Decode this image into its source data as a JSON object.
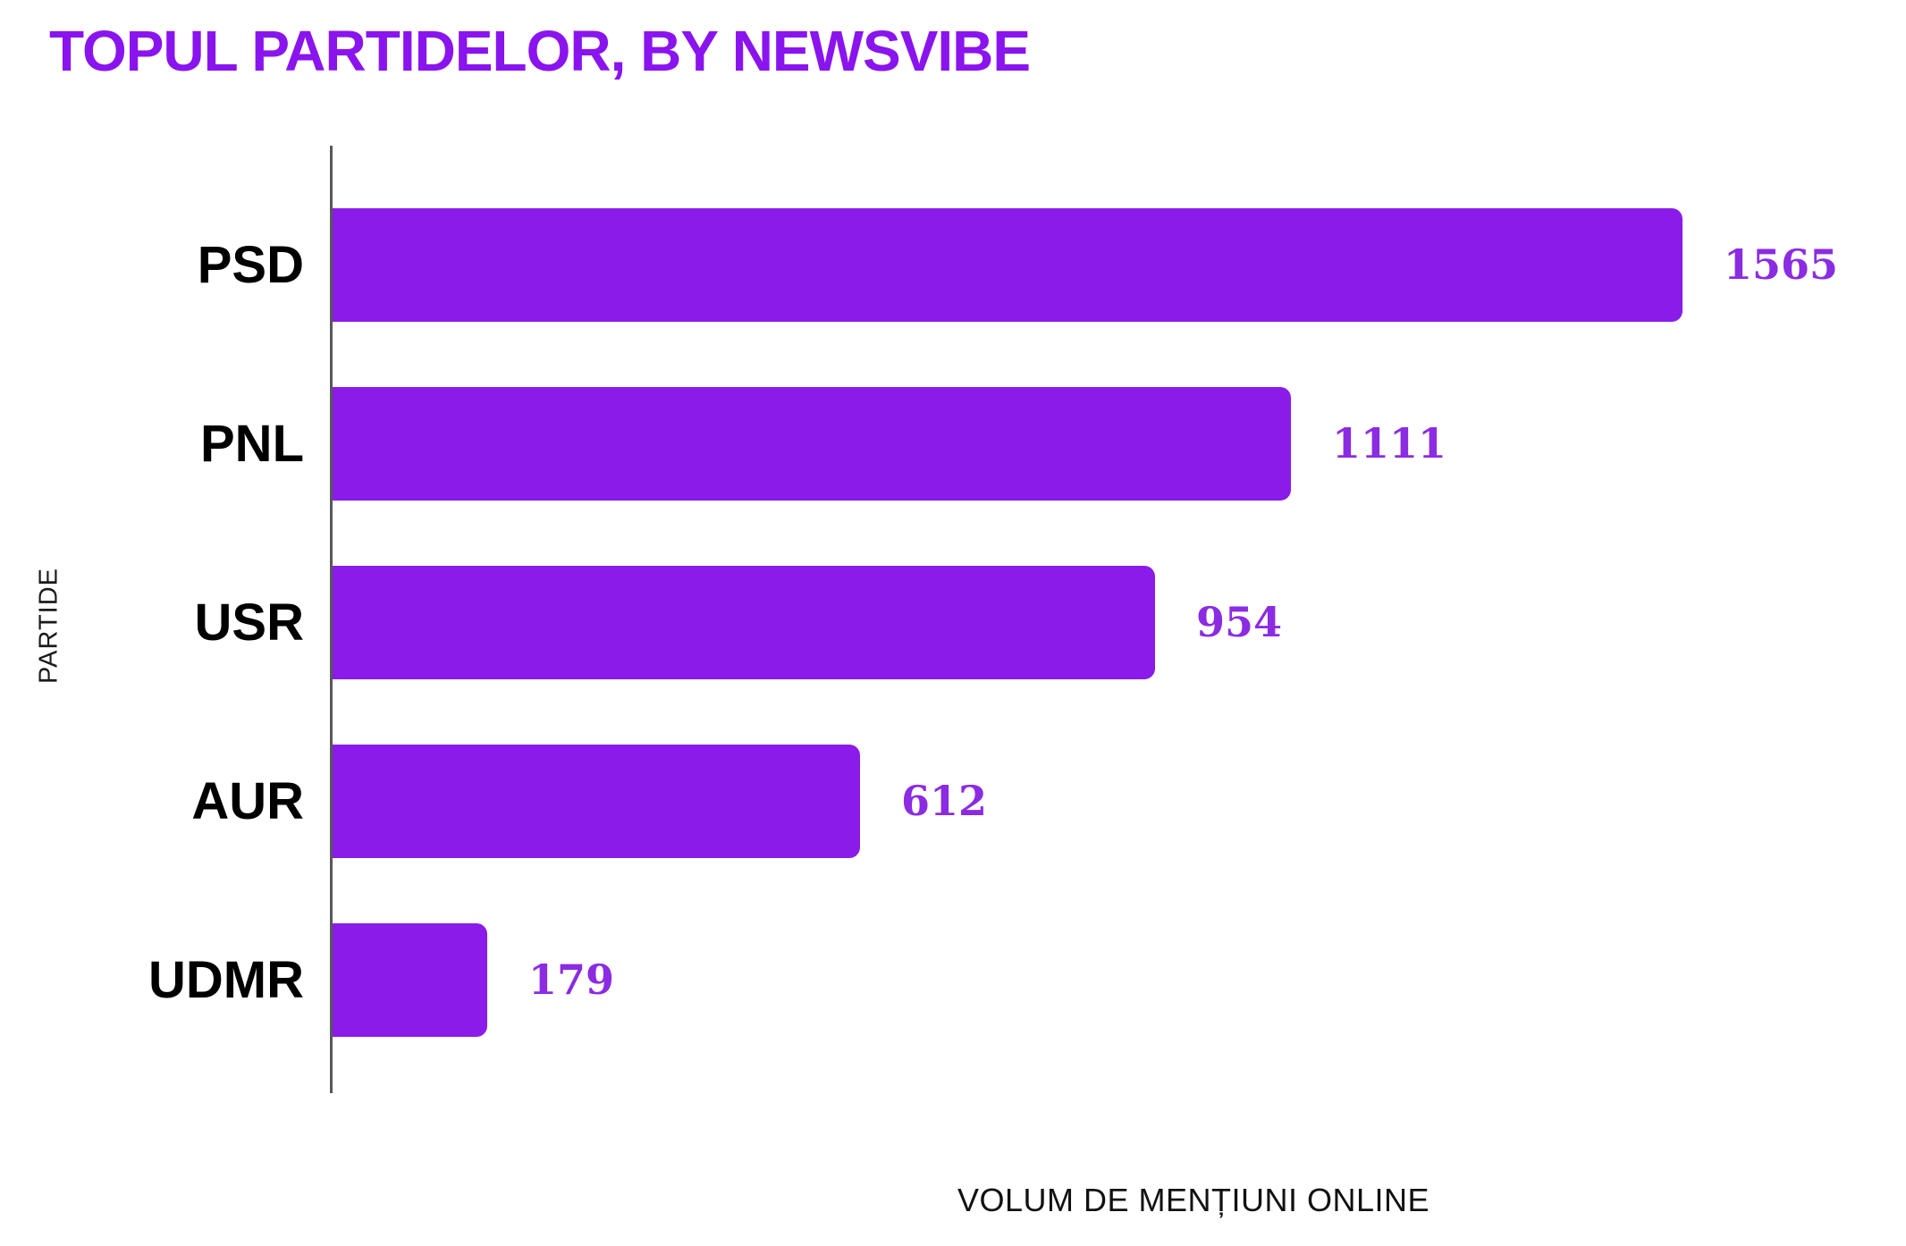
{
  "title": "TOPUL PARTIDELOR, BY NEWSVIBE",
  "colors": {
    "bar": "#8A1BE8",
    "title": "#8A14EE",
    "value_label": "#8B2BE2",
    "axis": "#58585A",
    "category_label": "#000000"
  },
  "chart_data": {
    "type": "bar",
    "orientation": "horizontal",
    "title": "TOPUL PARTIDELOR, BY NEWSVIBE",
    "categories": [
      "PSD",
      "PNL",
      "USR",
      "AUR",
      "UDMR"
    ],
    "values": [
      1565,
      1111,
      954,
      612,
      179
    ],
    "xlabel": "VOLUM DE MENȚIUNI ONLINE",
    "ylabel": "PARTIDE",
    "xlim": [
      0,
      1620
    ],
    "grid": false,
    "legend": false,
    "value_labels_shown": true
  }
}
